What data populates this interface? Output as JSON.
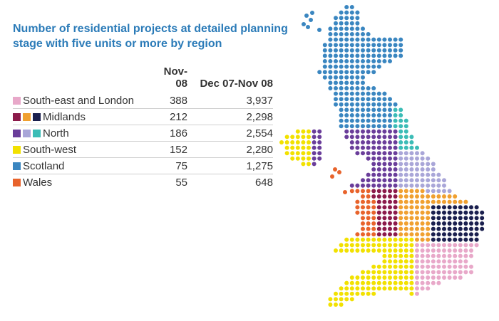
{
  "title": {
    "line1": "Number of residential projects at detailed planning",
    "line2": "stage with five units or more by region"
  },
  "table": {
    "columns": [
      "Nov-08",
      "Dec 07-Nov 08"
    ],
    "rows": [
      {
        "region": "South-east and London",
        "swatches": [
          "#e8a8c9"
        ],
        "nov08": "388",
        "dec07_nov08": "3,937"
      },
      {
        "region": "Midlands",
        "swatches": [
          "#8b1a4a",
          "#f0a030",
          "#1a1f4e"
        ],
        "nov08": "212",
        "dec07_nov08": "2,298"
      },
      {
        "region": "North",
        "swatches": [
          "#6a3d9a",
          "#a9a6d8",
          "#3bbcb6"
        ],
        "nov08": "186",
        "dec07_nov08": "2,554"
      },
      {
        "region": "South-west",
        "swatches": [
          "#f2e100"
        ],
        "nov08": "152",
        "dec07_nov08": "2,280"
      },
      {
        "region": "Scotland",
        "swatches": [
          "#3a86c0"
        ],
        "nov08": "75",
        "dec07_nov08": "1,275"
      },
      {
        "region": "Wales",
        "swatches": [
          "#e8632b"
        ],
        "nov08": "55",
        "dec07_nov08": "648"
      }
    ]
  },
  "map_colors": {
    "scotland": "#3a86c0",
    "north_east": "#3bbcb6",
    "north_west": "#6a3d9a",
    "yorkshire": "#a9a6d8",
    "west_midlands": "#8b1a4a",
    "east_midlands": "#f0a030",
    "east": "#1a1f4e",
    "south_east_london": "#e8a8c9",
    "south_west": "#f2e100",
    "wales": "#e8632b",
    "northern_ireland": "#f2e100"
  }
}
